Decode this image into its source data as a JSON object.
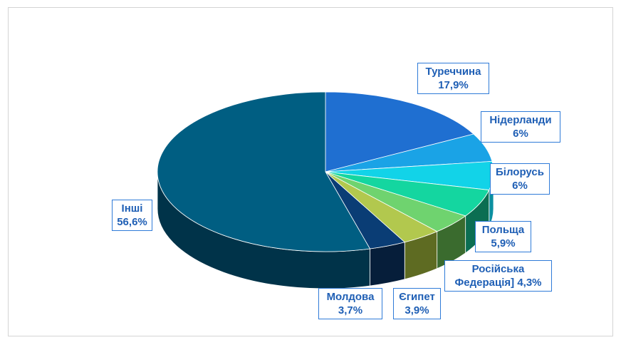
{
  "chart_data": {
    "type": "pie",
    "title": "",
    "slices": [
      {
        "label": "Туреччина",
        "value_text": "17,9%",
        "value": 17.9,
        "color": "#1f6fd1",
        "side": "#15518f"
      },
      {
        "label": "Нідерланди",
        "value_text": "6%",
        "value": 6,
        "color": "#1aa3e6",
        "side": "#0e6f9e"
      },
      {
        "label": "Білорусь",
        "value_text": "6%",
        "value": 6,
        "color": "#12d3e8",
        "side": "#0b8fa0"
      },
      {
        "label": "Польща",
        "value_text": "5,9%",
        "value": 5.9,
        "color": "#14d6a0",
        "side": "#0b6e52"
      },
      {
        "label": "Російська Федерація]",
        "value_text": "4,3%",
        "value": 4.3,
        "color": "#6fd36f",
        "side": "#3a6b2e"
      },
      {
        "label": "Єгипет",
        "value_text": "3,9%",
        "value": 3.9,
        "color": "#b2c84e",
        "side": "#5e6b22"
      },
      {
        "label": "Молдова",
        "value_text": "3,7%",
        "value": 3.7,
        "color": "#0a3d75",
        "side": "#061e3a"
      },
      {
        "label": "Інші",
        "value_text": "56,6%",
        "value": 56.6,
        "color": "#005e82",
        "side": "#003349"
      }
    ]
  }
}
